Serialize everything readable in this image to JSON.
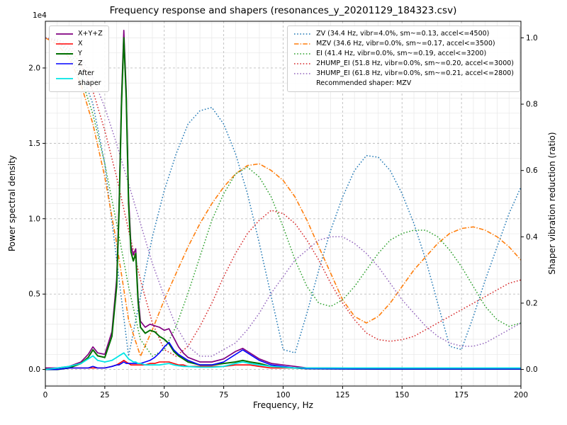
{
  "chart_data": {
    "type": "line",
    "title": "Frequency response and shapers (resonances_y_20201129_184323.csv)",
    "xlabel": "Frequency, Hz",
    "grid": true,
    "legend_left_position": "upper left",
    "legend_right_position": "upper right",
    "x_axis": {
      "lim": [
        0,
        200
      ],
      "tick_values": [
        0,
        25,
        50,
        75,
        100,
        125,
        150,
        175,
        200
      ],
      "tick_labels": [
        "0",
        "25",
        "50",
        "75",
        "100",
        "125",
        "150",
        "175",
        "200"
      ],
      "minor_step": 5
    },
    "left_axis": {
      "label": "Power spectral density",
      "offset_text": "1e4",
      "lim": [
        -0.11,
        2.31
      ],
      "tick_values": [
        0.0,
        0.5,
        1.0,
        1.5,
        2.0
      ],
      "tick_labels": [
        "0.0",
        "0.5",
        "1.0",
        "1.5",
        "2.0"
      ],
      "minor_step": 0.1
    },
    "right_axis": {
      "label": "Shaper vibration reduction (ratio)",
      "lim": [
        -0.05,
        1.05
      ],
      "tick_values": [
        0.0,
        0.2,
        0.4,
        0.6,
        0.8,
        1.0
      ],
      "tick_labels": [
        "0.0",
        "0.2",
        "0.4",
        "0.6",
        "0.8",
        "1.0"
      ]
    },
    "psd": {
      "axis": "left",
      "unit_scale": "1e4",
      "x": [
        0,
        5,
        10,
        15,
        18,
        20,
        22,
        25,
        28,
        30,
        31,
        32,
        33,
        34,
        35,
        36,
        37,
        38,
        39,
        40,
        42,
        44,
        46,
        48,
        50,
        52,
        54,
        56,
        58,
        60,
        65,
        70,
        75,
        80,
        83,
        86,
        90,
        95,
        100,
        105,
        110,
        120,
        140,
        160,
        180,
        200
      ],
      "series": [
        {
          "name": "X+Y+Z",
          "label": "X+Y+Z",
          "color": "#800080",
          "style": "solid",
          "lw": 1.7,
          "values": [
            0.01,
            0.01,
            0.02,
            0.05,
            0.1,
            0.15,
            0.11,
            0.1,
            0.25,
            0.6,
            1.1,
            1.8,
            2.25,
            1.85,
            1.15,
            0.82,
            0.76,
            0.8,
            0.48,
            0.32,
            0.28,
            0.3,
            0.29,
            0.28,
            0.26,
            0.27,
            0.21,
            0.15,
            0.11,
            0.08,
            0.05,
            0.05,
            0.07,
            0.12,
            0.14,
            0.11,
            0.07,
            0.04,
            0.03,
            0.02,
            0.01,
            0.01,
            0.005,
            0.005,
            0.005,
            0.005
          ]
        },
        {
          "name": "X",
          "label": "X",
          "color": "#ff0000",
          "style": "solid",
          "lw": 1.6,
          "values": [
            0.0,
            0.0,
            0.01,
            0.01,
            0.01,
            0.01,
            0.01,
            0.01,
            0.02,
            0.03,
            0.04,
            0.05,
            0.06,
            0.05,
            0.04,
            0.03,
            0.03,
            0.03,
            0.03,
            0.03,
            0.03,
            0.04,
            0.04,
            0.05,
            0.05,
            0.05,
            0.04,
            0.03,
            0.03,
            0.02,
            0.02,
            0.02,
            0.02,
            0.03,
            0.03,
            0.03,
            0.02,
            0.01,
            0.01,
            0.01,
            0.005,
            0.005,
            0.003,
            0.003,
            0.003,
            0.003
          ]
        },
        {
          "name": "Y",
          "label": "Y",
          "color": "#007000",
          "style": "solid",
          "lw": 2.0,
          "values": [
            0.0,
            0.0,
            0.01,
            0.04,
            0.08,
            0.13,
            0.09,
            0.08,
            0.22,
            0.55,
            1.05,
            1.75,
            2.2,
            1.8,
            1.1,
            0.78,
            0.72,
            0.77,
            0.45,
            0.28,
            0.24,
            0.26,
            0.25,
            0.22,
            0.2,
            0.17,
            0.12,
            0.09,
            0.07,
            0.05,
            0.03,
            0.03,
            0.04,
            0.05,
            0.06,
            0.05,
            0.04,
            0.02,
            0.015,
            0.01,
            0.005,
            0.004,
            0.003,
            0.003,
            0.003,
            0.003
          ]
        },
        {
          "name": "Z",
          "label": "Z",
          "color": "#0000ff",
          "style": "solid",
          "lw": 1.6,
          "values": [
            0.0,
            0.0,
            0.01,
            0.01,
            0.01,
            0.02,
            0.01,
            0.01,
            0.02,
            0.03,
            0.03,
            0.04,
            0.05,
            0.04,
            0.04,
            0.04,
            0.04,
            0.04,
            0.04,
            0.04,
            0.05,
            0.06,
            0.08,
            0.11,
            0.15,
            0.18,
            0.13,
            0.1,
            0.08,
            0.06,
            0.03,
            0.03,
            0.05,
            0.1,
            0.13,
            0.1,
            0.06,
            0.03,
            0.02,
            0.01,
            0.005,
            0.004,
            0.003,
            0.003,
            0.003,
            0.003
          ]
        },
        {
          "name": "After shaper",
          "label": "After\nshaper",
          "color": "#00e5e5",
          "style": "solid",
          "lw": 1.8,
          "values": [
            0.0,
            0.01,
            0.02,
            0.04,
            0.07,
            0.09,
            0.06,
            0.05,
            0.06,
            0.08,
            0.09,
            0.1,
            0.11,
            0.09,
            0.07,
            0.06,
            0.05,
            0.05,
            0.04,
            0.04,
            0.03,
            0.03,
            0.03,
            0.03,
            0.035,
            0.04,
            0.03,
            0.025,
            0.02,
            0.02,
            0.015,
            0.015,
            0.02,
            0.04,
            0.05,
            0.04,
            0.03,
            0.02,
            0.015,
            0.01,
            0.01,
            0.01,
            0.01,
            0.01,
            0.01,
            0.01
          ]
        }
      ]
    },
    "shapers": {
      "axis": "right",
      "recommended_note": "Recommended shaper: MZV",
      "recommended": "MZV",
      "x": [
        0,
        5,
        10,
        15,
        20,
        25,
        30,
        35,
        40,
        45,
        50,
        55,
        60,
        65,
        70,
        75,
        80,
        85,
        90,
        95,
        100,
        105,
        110,
        115,
        120,
        125,
        130,
        135,
        140,
        145,
        150,
        155,
        160,
        165,
        170,
        175,
        180,
        185,
        190,
        195,
        200
      ],
      "series": [
        {
          "name": "ZV",
          "label": "ZV (34.4 Hz, vibr=4.0%, sm~=0.13, accel<=4500)",
          "color": "#1f77b4",
          "style": "dotted",
          "lw": 1.5,
          "values": [
            1.0,
            0.99,
            0.96,
            0.9,
            0.8,
            0.62,
            0.33,
            0.04,
            0.22,
            0.4,
            0.54,
            0.65,
            0.74,
            0.78,
            0.79,
            0.74,
            0.65,
            0.53,
            0.38,
            0.22,
            0.06,
            0.05,
            0.17,
            0.3,
            0.42,
            0.52,
            0.6,
            0.645,
            0.64,
            0.6,
            0.53,
            0.44,
            0.33,
            0.2,
            0.07,
            0.06,
            0.16,
            0.27,
            0.37,
            0.47,
            0.55
          ]
        },
        {
          "name": "MZV",
          "label": "MZV (34.6 Hz, vibr=0.0%, sm~=0.17, accel<=3500)",
          "color": "#ff7f0e",
          "style": "dashdot",
          "lw": 1.6,
          "values": [
            1.0,
            0.98,
            0.94,
            0.86,
            0.74,
            0.58,
            0.38,
            0.15,
            0.04,
            0.12,
            0.21,
            0.29,
            0.37,
            0.44,
            0.5,
            0.55,
            0.59,
            0.615,
            0.62,
            0.6,
            0.57,
            0.52,
            0.45,
            0.37,
            0.29,
            0.21,
            0.16,
            0.14,
            0.16,
            0.2,
            0.25,
            0.3,
            0.34,
            0.38,
            0.41,
            0.425,
            0.43,
            0.42,
            0.4,
            0.37,
            0.33
          ]
        },
        {
          "name": "EI",
          "label": "EI (41.4 Hz, vibr=0.0%, sm~=0.19, accel<=3200)",
          "color": "#2ca02c",
          "style": "dotted",
          "lw": 1.5,
          "values": [
            1.0,
            0.99,
            0.95,
            0.88,
            0.77,
            0.62,
            0.44,
            0.25,
            0.09,
            0.04,
            0.06,
            0.13,
            0.23,
            0.34,
            0.45,
            0.53,
            0.59,
            0.61,
            0.58,
            0.52,
            0.43,
            0.33,
            0.25,
            0.2,
            0.19,
            0.21,
            0.25,
            0.3,
            0.35,
            0.39,
            0.41,
            0.42,
            0.42,
            0.4,
            0.36,
            0.31,
            0.25,
            0.19,
            0.15,
            0.13,
            0.14
          ]
        },
        {
          "name": "2HUMP_EI",
          "label": "2HUMP_EI (51.8 Hz, vibr=0.0%, sm~=0.20, accel<=3000)",
          "color": "#d62728",
          "style": "dotted",
          "lw": 1.5,
          "values": [
            1.0,
            0.99,
            0.97,
            0.92,
            0.84,
            0.72,
            0.58,
            0.42,
            0.27,
            0.14,
            0.06,
            0.04,
            0.07,
            0.13,
            0.2,
            0.28,
            0.35,
            0.41,
            0.45,
            0.48,
            0.47,
            0.44,
            0.39,
            0.33,
            0.26,
            0.2,
            0.15,
            0.11,
            0.09,
            0.085,
            0.09,
            0.1,
            0.12,
            0.14,
            0.16,
            0.18,
            0.2,
            0.22,
            0.24,
            0.26,
            0.27
          ]
        },
        {
          "name": "3HUMP_EI",
          "label": "3HUMP_EI (61.8 Hz, vibr=0.0%, sm~=0.21, accel<=2800)",
          "color": "#9467bd",
          "style": "dotted",
          "lw": 1.5,
          "values": [
            1.0,
            0.995,
            0.98,
            0.94,
            0.88,
            0.79,
            0.68,
            0.56,
            0.44,
            0.32,
            0.22,
            0.13,
            0.07,
            0.04,
            0.04,
            0.06,
            0.08,
            0.12,
            0.17,
            0.23,
            0.28,
            0.33,
            0.36,
            0.39,
            0.4,
            0.4,
            0.38,
            0.35,
            0.31,
            0.26,
            0.21,
            0.17,
            0.13,
            0.1,
            0.08,
            0.07,
            0.07,
            0.08,
            0.1,
            0.12,
            0.14
          ]
        }
      ]
    }
  }
}
